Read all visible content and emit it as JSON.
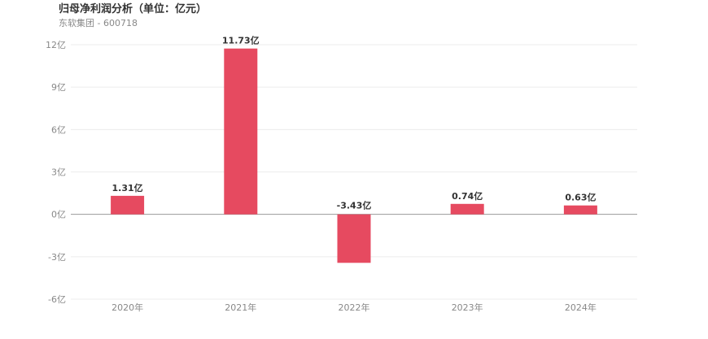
{
  "header": {
    "title": "归母净利润分析（单位：亿元）",
    "subtitle": "东软集团 - 600718"
  },
  "chart_data": {
    "type": "bar",
    "title": "归母净利润分析（单位：亿元）",
    "subtitle": "东软集团 - 600718",
    "categories": [
      "2020年",
      "2021年",
      "2022年",
      "2023年",
      "2024年"
    ],
    "values": [
      1.31,
      11.73,
      -3.43,
      0.74,
      0.63
    ],
    "data_labels": [
      "1.31亿",
      "11.73亿",
      "-3.43亿",
      "0.74亿",
      "0.63亿"
    ],
    "yticks": [
      12,
      9,
      6,
      3,
      0,
      -3,
      -6
    ],
    "ytick_labels": [
      "12亿",
      "9亿",
      "6亿",
      "3亿",
      "0亿",
      "-3亿",
      "-6亿"
    ],
    "ylim": [
      -6,
      12
    ],
    "xlabel": "",
    "ylabel": "",
    "grid": true,
    "bar_color": "#e64a60"
  }
}
